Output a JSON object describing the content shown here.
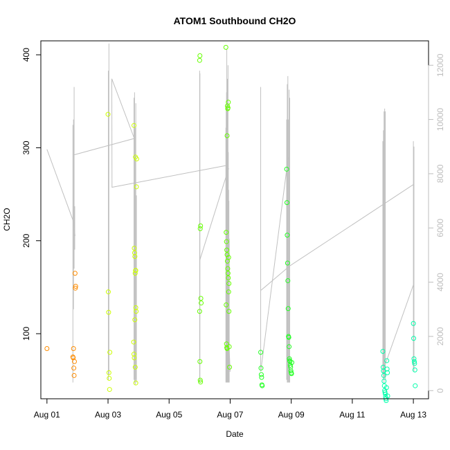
{
  "chart_data": {
    "type": "scatter",
    "title": "ATOM1 Southbound CH2O",
    "xlabel": "Date",
    "ylabel": "CH2O",
    "ylim": [
      30,
      415
    ],
    "xlim": [
      "2016-07-31T19:12",
      "2016-08-13T11:55"
    ],
    "x_ticks": [
      {
        "date": "2016-08-01",
        "label": "Aug 01"
      },
      {
        "date": "2016-08-03",
        "label": "Aug 03"
      },
      {
        "date": "2016-08-05",
        "label": "Aug 05"
      },
      {
        "date": "2016-08-07",
        "label": "Aug 07"
      },
      {
        "date": "2016-08-09",
        "label": "Aug 09"
      },
      {
        "date": "2016-08-11",
        "label": "Aug 11"
      },
      {
        "date": "2016-08-13",
        "label": "Aug 13"
      }
    ],
    "y_ticks": [
      100,
      200,
      300,
      400
    ],
    "y2_ticks": [
      0,
      2000,
      4000,
      6000,
      8000,
      10000,
      12000
    ],
    "y2lim": [
      -300,
      12900
    ],
    "grid": false,
    "series": [
      {
        "color": "#ff8c00",
        "points": [
          [
            "2016-08-01T00:00",
            84
          ],
          [
            "2016-08-01T20:24",
            75
          ],
          [
            "2016-08-01T20:38",
            74
          ],
          [
            "2016-08-01T20:52",
            84
          ],
          [
            "2016-08-01T21:07",
            63
          ],
          [
            "2016-08-01T21:21",
            55
          ],
          [
            "2016-08-01T21:36",
            70
          ],
          [
            "2016-08-01T22:05",
            165
          ],
          [
            "2016-08-01T22:19",
            149
          ],
          [
            "2016-08-01T22:33",
            151
          ]
        ]
      },
      {
        "color": "#ccff00",
        "points": [
          [
            "2016-08-03T00:00",
            336
          ],
          [
            "2016-08-03T00:14",
            145
          ],
          [
            "2016-08-03T00:28",
            123
          ],
          [
            "2016-08-03T00:43",
            58
          ],
          [
            "2016-08-03T00:57",
            52
          ],
          [
            "2016-08-03T01:12",
            40
          ],
          [
            "2016-08-03T01:26",
            80
          ],
          [
            "2016-08-03T20:24",
            324
          ],
          [
            "2016-08-03T20:38",
            192
          ],
          [
            "2016-08-03T20:52",
            187
          ],
          [
            "2016-08-03T21:07",
            183
          ],
          [
            "2016-08-03T21:21",
            165
          ],
          [
            "2016-08-03T21:36",
            168
          ],
          [
            "2016-08-03T21:50",
            128
          ],
          [
            "2016-08-03T21:04",
            115
          ],
          [
            "2016-08-03T20:09",
            91
          ],
          [
            "2016-08-03T20:23",
            78
          ],
          [
            "2016-08-03T20:37",
            74
          ],
          [
            "2016-08-03T21:22",
            64
          ],
          [
            "2016-08-03T21:50",
            47
          ],
          [
            "2016-08-03T22:05",
            124
          ],
          [
            "2016-08-03T22:19",
            258
          ],
          [
            "2016-08-03T22:33",
            288
          ],
          [
            "2016-08-03T21:35",
            290
          ],
          [
            "2016-08-03T21:48",
            168
          ]
        ]
      },
      {
        "color": "#66ff00",
        "points": [
          [
            "2016-08-06T00:00",
            394
          ],
          [
            "2016-08-06T00:14",
            399
          ],
          [
            "2016-08-06T00:28",
            213
          ],
          [
            "2016-08-06T00:43",
            216
          ],
          [
            "2016-08-06T00:57",
            138
          ],
          [
            "2016-08-06T01:12",
            133
          ],
          [
            "2016-08-06T00:00",
            124
          ],
          [
            "2016-08-06T00:14",
            70
          ],
          [
            "2016-08-06T00:28",
            50
          ],
          [
            "2016-08-06T00:43",
            48
          ],
          [
            "2016-08-06T20:38",
            408
          ],
          [
            "2016-08-06T20:52",
            131
          ],
          [
            "2016-08-06T21:07",
            89
          ],
          [
            "2016-08-06T21:21",
            85
          ],
          [
            "2016-08-06T21:36",
            84
          ],
          [
            "2016-08-06T20:52",
            209
          ],
          [
            "2016-08-06T21:07",
            199
          ],
          [
            "2016-08-06T21:21",
            190
          ],
          [
            "2016-08-06T21:36",
            185
          ],
          [
            "2016-08-06T21:50",
            178
          ],
          [
            "2016-08-06T22:05",
            170
          ],
          [
            "2016-08-06T22:19",
            165
          ],
          [
            "2016-08-06T22:33",
            160
          ],
          [
            "2016-08-06T22:48",
            145
          ],
          [
            "2016-08-06T23:02",
            124
          ],
          [
            "2016-08-06T23:16",
            86
          ],
          [
            "2016-08-06T23:31",
            64
          ],
          [
            "2016-08-06T21:50",
            345
          ],
          [
            "2016-08-06T22:05",
            342
          ],
          [
            "2016-08-06T22:19",
            343
          ],
          [
            "2016-08-06T22:33",
            349
          ],
          [
            "2016-08-06T21:36",
            313
          ],
          [
            "2016-08-06T22:48",
            182
          ],
          [
            "2016-08-06T23:02",
            154
          ]
        ]
      },
      {
        "color": "#22ff22",
        "points": [
          [
            "2016-08-08T00:00",
            80
          ],
          [
            "2016-08-08T00:14",
            63
          ],
          [
            "2016-08-08T00:28",
            56
          ],
          [
            "2016-08-08T00:43",
            53
          ],
          [
            "2016-08-08T00:57",
            45
          ],
          [
            "2016-08-08T01:12",
            44
          ],
          [
            "2016-08-08T20:24",
            277
          ],
          [
            "2016-08-08T20:38",
            241
          ],
          [
            "2016-08-08T20:52",
            206
          ],
          [
            "2016-08-08T21:07",
            176
          ],
          [
            "2016-08-08T21:21",
            157
          ],
          [
            "2016-08-08T21:36",
            127
          ],
          [
            "2016-08-08T21:50",
            97
          ],
          [
            "2016-08-08T22:05",
            96
          ],
          [
            "2016-08-08T22:19",
            86
          ],
          [
            "2016-08-08T22:33",
            73
          ],
          [
            "2016-08-08T22:48",
            71
          ],
          [
            "2016-08-08T23:02",
            70
          ],
          [
            "2016-08-08T23:16",
            66
          ],
          [
            "2016-08-08T23:31",
            64
          ],
          [
            "2016-08-08T23:45",
            60
          ],
          [
            "2016-08-09T00:00",
            58
          ],
          [
            "2016-08-09T00:14",
            57
          ],
          [
            "2016-08-09T00:28",
            69
          ]
        ]
      },
      {
        "color": "#00ffaa",
        "points": [
          [
            "2016-08-12T00:00",
            81
          ],
          [
            "2016-08-12T00:14",
            64
          ],
          [
            "2016-08-12T00:28",
            60
          ],
          [
            "2016-08-12T00:43",
            55
          ],
          [
            "2016-08-12T00:57",
            49
          ],
          [
            "2016-08-12T01:12",
            44
          ],
          [
            "2016-08-12T01:26",
            39
          ],
          [
            "2016-08-12T01:40",
            37
          ],
          [
            "2016-08-12T01:55",
            35
          ],
          [
            "2016-08-12T02:09",
            32
          ],
          [
            "2016-08-12T02:24",
            30
          ],
          [
            "2016-08-12T02:38",
            28
          ],
          [
            "2016-08-12T02:52",
            42
          ],
          [
            "2016-08-12T03:07",
            71
          ],
          [
            "2016-08-12T03:21",
            62
          ],
          [
            "2016-08-12T03:36",
            58
          ],
          [
            "2016-08-12T03:50",
            33
          ],
          [
            "2016-08-13T00:00",
            111
          ],
          [
            "2016-08-13T00:14",
            95
          ],
          [
            "2016-08-13T00:28",
            73
          ],
          [
            "2016-08-13T00:43",
            70
          ],
          [
            "2016-08-13T00:57",
            68
          ],
          [
            "2016-08-13T01:12",
            61
          ],
          [
            "2016-08-13T01:26",
            44
          ]
        ]
      }
    ],
    "secondary_line": {
      "color": "#c0c0c0",
      "segments": [
        [
          [
            "2016-08-01T00:00",
            8900
          ],
          [
            "2016-08-01T21:07",
            6200
          ],
          [
            "2016-08-01T22:05",
            5700
          ]
        ],
        [
          [
            "2016-08-01T21:36",
            8700
          ],
          [
            "2016-08-03T20:38",
            9300
          ],
          [
            "2016-08-03T03:00",
            11500
          ],
          [
            "2016-08-03T03:07",
            7500
          ],
          [
            "2016-08-06T20:24",
            8300
          ]
        ],
        [
          [
            "2016-08-06T00:00",
            4800
          ],
          [
            "2016-08-06T22:48",
            8200
          ]
        ],
        [
          [
            "2016-08-06T21:00",
            4200
          ],
          [
            "2016-08-06T23:59",
            700
          ]
        ],
        [
          [
            "2016-08-08T00:00",
            700
          ],
          [
            "2016-08-08T21:36",
            8600
          ]
        ],
        [
          [
            "2016-08-08T00:14",
            3700
          ],
          [
            "2016-08-08T22:48",
            4600
          ],
          [
            "2016-08-13T00:00",
            7600
          ]
        ],
        [
          [
            "2016-08-12T02:09",
            1000
          ],
          [
            "2016-08-13T00:00",
            3900
          ]
        ]
      ],
      "spikes": [
        {
          "date": "2016-08-01T20:24",
          "min": 300,
          "max": 9800
        },
        {
          "date": "2016-08-01T20:52",
          "min": 3000,
          "max": 10000
        },
        {
          "date": "2016-08-01T21:21",
          "min": 4500,
          "max": 11200
        },
        {
          "date": "2016-08-01T21:50",
          "min": 5200,
          "max": 6800
        },
        {
          "date": "2016-08-03T00:14",
          "min": 400,
          "max": 11800
        },
        {
          "date": "2016-08-03T00:43",
          "min": 600,
          "max": 12800
        },
        {
          "date": "2016-08-03T20:24",
          "min": 400,
          "max": 10800
        },
        {
          "date": "2016-08-03T20:52",
          "min": 300,
          "max": 11000
        },
        {
          "date": "2016-08-03T21:21",
          "min": 200,
          "max": 9700
        },
        {
          "date": "2016-08-03T21:50",
          "min": 400,
          "max": 10600
        },
        {
          "date": "2016-08-03T22:19",
          "min": 300,
          "max": 7200
        },
        {
          "date": "2016-08-06T00:00",
          "min": 300,
          "max": 11800
        },
        {
          "date": "2016-08-06T00:14",
          "min": 300,
          "max": 11700
        },
        {
          "date": "2016-08-06T20:38",
          "min": 300,
          "max": 9700
        },
        {
          "date": "2016-08-06T20:52",
          "min": 300,
          "max": 10400
        },
        {
          "date": "2016-08-06T21:07",
          "min": 300,
          "max": 11000
        },
        {
          "date": "2016-08-06T21:21",
          "min": 300,
          "max": 12600
        },
        {
          "date": "2016-08-06T21:36",
          "min": 300,
          "max": 10700
        },
        {
          "date": "2016-08-06T21:50",
          "min": 300,
          "max": 11500
        },
        {
          "date": "2016-08-06T22:05",
          "min": 300,
          "max": 10500
        },
        {
          "date": "2016-08-06T22:19",
          "min": 300,
          "max": 12000
        },
        {
          "date": "2016-08-06T22:33",
          "min": 300,
          "max": 8800
        },
        {
          "date": "2016-08-06T22:48",
          "min": 300,
          "max": 7400
        },
        {
          "date": "2016-08-06T23:02",
          "min": 300,
          "max": 7000
        },
        {
          "date": "2016-08-06T23:16",
          "min": 300,
          "max": 5600
        },
        {
          "date": "2016-08-08T00:00",
          "min": 800,
          "max": 11200
        },
        {
          "date": "2016-08-08T20:24",
          "min": 400,
          "max": 10000
        },
        {
          "date": "2016-08-08T20:52",
          "min": 300,
          "max": 11300
        },
        {
          "date": "2016-08-08T21:21",
          "min": 300,
          "max": 11600
        },
        {
          "date": "2016-08-08T21:50",
          "min": 300,
          "max": 10000
        },
        {
          "date": "2016-08-08T22:19",
          "min": 300,
          "max": 11100
        },
        {
          "date": "2016-08-08T22:48",
          "min": 300,
          "max": 10800
        },
        {
          "date": "2016-08-12T00:00",
          "min": 600,
          "max": 9200
        },
        {
          "date": "2016-08-12T00:28",
          "min": 400,
          "max": 9600
        },
        {
          "date": "2016-08-12T00:57",
          "min": 300,
          "max": 10300
        },
        {
          "date": "2016-08-12T01:26",
          "min": 500,
          "max": 10400
        },
        {
          "date": "2016-08-12T01:55",
          "min": 400,
          "max": 10300
        },
        {
          "date": "2016-08-13T00:00",
          "min": 800,
          "max": 9200
        },
        {
          "date": "2016-08-13T00:28",
          "min": 700,
          "max": 9000
        }
      ]
    }
  }
}
